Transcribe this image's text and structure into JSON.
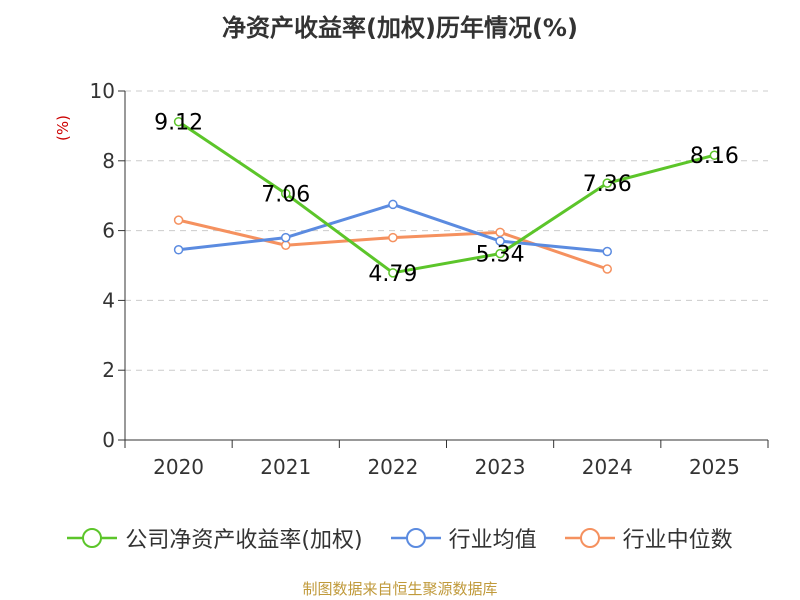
{
  "chart_data": {
    "type": "line",
    "title": "净资产收益率(加权)历年情况(%)",
    "ylabel": "(%)",
    "xlabel": "",
    "categories": [
      "2020",
      "2021",
      "2022",
      "2023",
      "2024",
      "2025"
    ],
    "ylim": [
      0,
      10
    ],
    "yticks": [
      0,
      2,
      4,
      6,
      8,
      10
    ],
    "grid": true,
    "legend_position": "bottom",
    "series": [
      {
        "name": "公司净资产收益率(加权)",
        "color": "#5cc52a",
        "values": [
          9.12,
          7.06,
          4.79,
          5.34,
          7.36,
          8.16
        ],
        "show_labels": true
      },
      {
        "name": "行业均值",
        "color": "#5b8be0",
        "values": [
          5.45,
          5.8,
          6.75,
          5.7,
          5.4,
          null
        ],
        "show_labels": false
      },
      {
        "name": "行业中位数",
        "color": "#f5915f",
        "values": [
          6.3,
          5.58,
          5.8,
          5.95,
          4.9,
          null
        ],
        "show_labels": false
      }
    ]
  },
  "source": "制图数据来自恒生聚源数据库"
}
